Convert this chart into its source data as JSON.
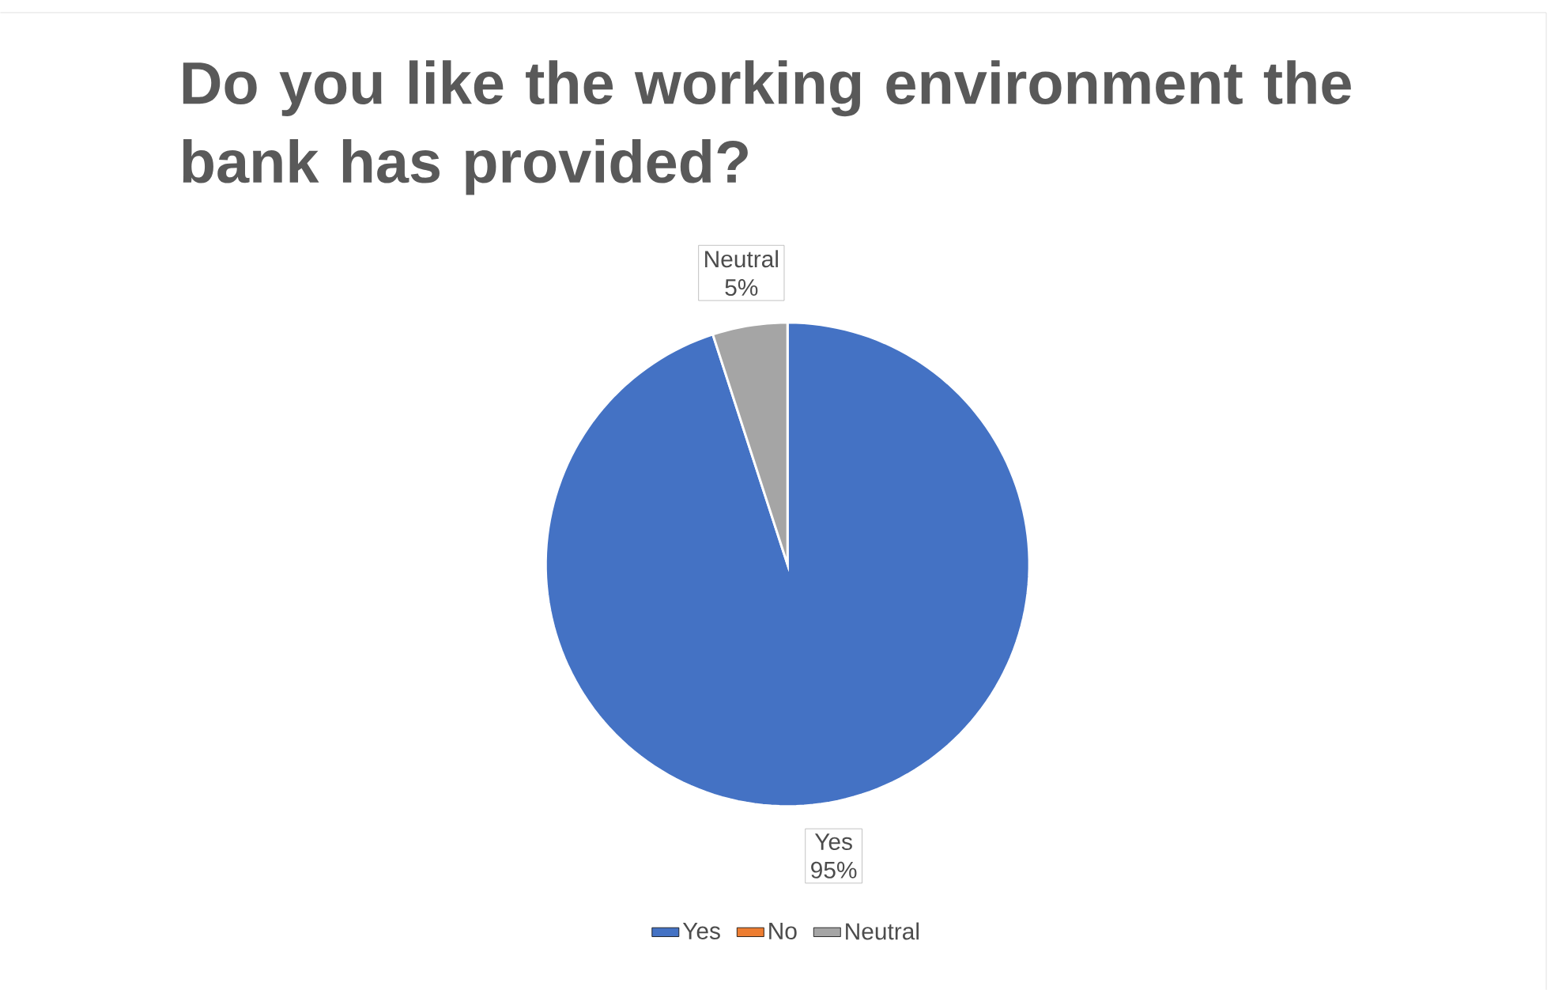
{
  "chart_data": {
    "type": "pie",
    "title": "Do you like the working environment the bank has provided?",
    "categories": [
      "Yes",
      "No",
      "Neutral"
    ],
    "values": [
      95,
      0,
      5
    ],
    "colors": [
      "#4472c4",
      "#ed7d31",
      "#a5a5a5"
    ],
    "value_labels": [
      "95%",
      null,
      "5%"
    ],
    "legend": "bottom"
  }
}
